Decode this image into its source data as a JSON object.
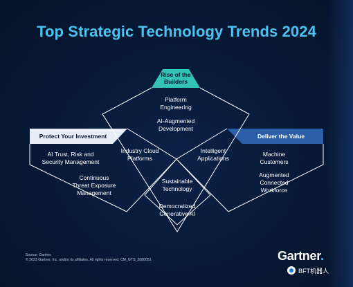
{
  "title": "Top Strategic Technology Trends 2024",
  "themes": {
    "builders": {
      "label_line1": "Rise of the",
      "label_line2": "Builders",
      "color": "#33c2b4"
    },
    "protect": {
      "label": "Protect Your Investment",
      "color": "#e7eef7"
    },
    "deliver": {
      "label": "Deliver the Value",
      "color": "#2b5fa8"
    }
  },
  "trends": {
    "platform_engineering": {
      "line1": "Platform",
      "line2": "Engineering"
    },
    "ai_augmented_development": {
      "line1": "AI-Augmented",
      "line2": "Development"
    },
    "ai_trism": {
      "line1": "AI Trust, Risk and",
      "line2": "Security Management"
    },
    "ctem": {
      "line1": "Continuous",
      "line2": "Threat Exposure",
      "line3": "Management"
    },
    "industry_cloud_platforms": {
      "line1": "Industry Cloud",
      "line2": "Platforms"
    },
    "intelligent_applications": {
      "line1": "Intelligent",
      "line2": "Applications"
    },
    "sustainable_technology": {
      "line1": "Sustainable",
      "line2": "Technology"
    },
    "democratized_generative_ai": {
      "line1": "Democratized",
      "line2": "Generative AI"
    },
    "machine_customers": {
      "line1": "Machine",
      "line2": "Customers"
    },
    "augmented_connected_workforce": {
      "line1": "Augmented",
      "line2": "Connected",
      "line3": "Workforce"
    }
  },
  "footer": {
    "source": "Source: Gartner",
    "copyright": "© 2023 Gartner, Inc. and/or its affiliates. All rights reserved. CM_GTS_2080051"
  },
  "brand": {
    "name": "Gartner",
    "dot": "."
  },
  "watermark": {
    "text": "BFT机器人",
    "icon": "wechat-badge-icon"
  }
}
